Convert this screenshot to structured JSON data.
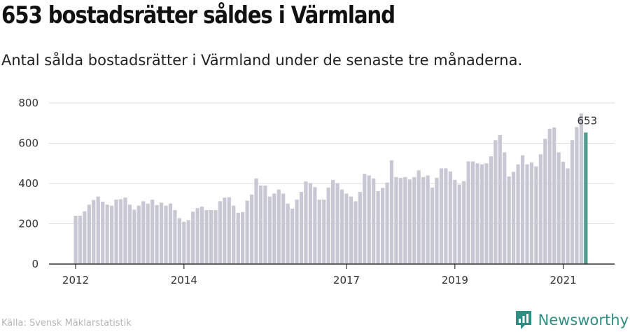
{
  "title": "653 bostadsrätter såldes i Värmland",
  "subtitle": "Antal sålda bostadsrätter i Värmland under de senaste tre månaderna.",
  "source": "Källa: Svensk Mäklarstatistik",
  "brand": "Newsworthy",
  "colors": {
    "bar": "#c8c7d4",
    "highlight": "#4f9a8c",
    "grid": "#dddddd",
    "axis": "#333333",
    "brand": "#2f8f84"
  },
  "chart_data": {
    "type": "bar",
    "highlight_label": "653",
    "y_ticks": [
      0,
      200,
      400,
      600,
      800
    ],
    "ylim": [
      0,
      800
    ],
    "x_ticks": [
      {
        "label": "2012",
        "index": 0
      },
      {
        "label": "2014",
        "index": 24
      },
      {
        "label": "2017",
        "index": 60
      },
      {
        "label": "2019",
        "index": 84
      },
      {
        "label": "2021",
        "index": 108
      }
    ],
    "values": [
      240,
      240,
      262,
      295,
      318,
      335,
      310,
      295,
      290,
      320,
      322,
      330,
      295,
      270,
      290,
      312,
      300,
      320,
      293,
      305,
      290,
      300,
      268,
      228,
      210,
      218,
      260,
      278,
      285,
      268,
      268,
      268,
      312,
      330,
      332,
      290,
      255,
      258,
      315,
      345,
      425,
      390,
      390,
      335,
      350,
      370,
      350,
      300,
      275,
      320,
      358,
      410,
      402,
      382,
      320,
      320,
      380,
      418,
      402,
      370,
      350,
      335,
      312,
      358,
      448,
      440,
      425,
      362,
      378,
      405,
      515,
      432,
      428,
      432,
      420,
      432,
      465,
      432,
      440,
      380,
      428,
      475,
      475,
      460,
      418,
      395,
      412,
      510,
      510,
      500,
      495,
      500,
      535,
      615,
      640,
      555,
      435,
      458,
      495,
      540,
      495,
      505,
      485,
      545,
      622,
      672,
      678,
      555,
      508,
      475,
      615,
      680,
      748,
      653
    ]
  }
}
